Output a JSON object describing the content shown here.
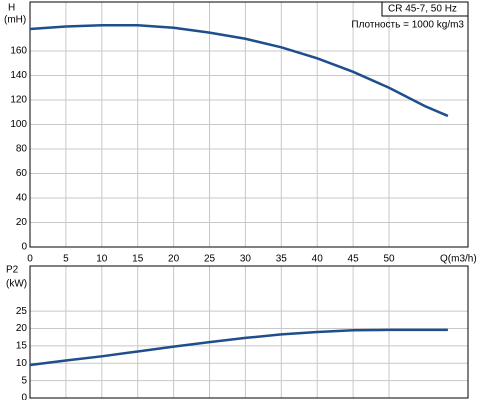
{
  "chart_data": [
    {
      "type": "line",
      "y_label": "H",
      "y_unit": "(mH)",
      "x_label": "Q(m3/h)",
      "legend": [
        "CR 45-7, 50 Hz"
      ],
      "note": "Плотность = 1000 kg/m3",
      "x": [
        0,
        5,
        10,
        15,
        20,
        25,
        30,
        35,
        40,
        45,
        50,
        55,
        58.2
      ],
      "series": [
        {
          "name": "CR 45-7, 50 Hz",
          "color": "#1f4e8c",
          "values": [
            178,
            180,
            181,
            181,
            179,
            175,
            170,
            163,
            154,
            143,
            130,
            115,
            107
          ]
        }
      ],
      "xlim": [
        0,
        61
      ],
      "xticks": [
        0,
        5,
        10,
        15,
        20,
        25,
        30,
        35,
        40,
        45,
        50
      ],
      "ylim": [
        0,
        200
      ],
      "yticks": [
        0,
        20,
        40,
        60,
        80,
        100,
        120,
        140,
        160
      ],
      "grid": true
    },
    {
      "type": "line",
      "y_label": "P2",
      "y_unit": "(kW)",
      "x": [
        0,
        5,
        10,
        15,
        20,
        25,
        30,
        35,
        40,
        45,
        50,
        55,
        58.2
      ],
      "series": [
        {
          "name": null,
          "color": "#1f4e8c",
          "values": [
            9.5,
            10.8,
            12,
            13.4,
            14.8,
            16.1,
            17.3,
            18.3,
            19,
            19.5,
            19.6,
            19.6,
            19.6
          ]
        }
      ],
      "xlim": [
        0,
        61
      ],
      "ylim": [
        0,
        38
      ],
      "yticks": [
        0,
        5,
        10,
        15,
        20,
        25
      ],
      "grid": true
    }
  ]
}
